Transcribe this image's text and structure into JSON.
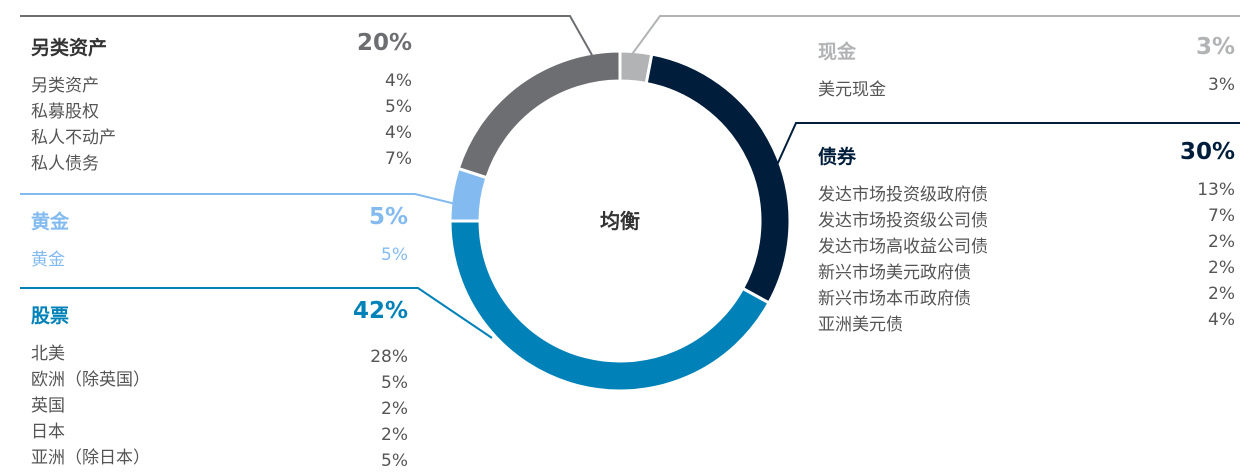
{
  "colors": {
    "alt": "#6d6e71",
    "gold": "#83bbf0",
    "equity": "#0082b9",
    "bond": "#001e3c",
    "cash": "#b2b3b5",
    "text": "#444444"
  },
  "chart_data": {
    "type": "pie",
    "center_label": "均衡",
    "slices": [
      {
        "name": "现金",
        "value": 3,
        "color": "#b2b3b5"
      },
      {
        "name": "债券",
        "value": 30,
        "color": "#001e3c"
      },
      {
        "name": "股票",
        "value": 42,
        "color": "#0082b9"
      },
      {
        "name": "黄金",
        "value": 5,
        "color": "#83bbf0"
      },
      {
        "name": "另类资产",
        "value": 20,
        "color": "#6d6e71"
      }
    ],
    "groups": [
      {
        "id": "alt",
        "name": "另类资产",
        "pct": "20%",
        "items": [
          {
            "label": "另类资产",
            "value": "4%"
          },
          {
            "label": "私募股权",
            "value": "5%"
          },
          {
            "label": "私人不动产",
            "value": "4%"
          },
          {
            "label": "私人债务",
            "value": "7%"
          }
        ]
      },
      {
        "id": "gold",
        "name": "黄金",
        "pct": "5%",
        "items": [
          {
            "label": "黄金",
            "value": "5%"
          }
        ]
      },
      {
        "id": "equity",
        "name": "股票",
        "pct": "42%",
        "items": [
          {
            "label": "北美",
            "value": "28%"
          },
          {
            "label": "欧洲（除英国）",
            "value": "5%"
          },
          {
            "label": "英国",
            "value": "2%"
          },
          {
            "label": "日本",
            "value": "2%"
          },
          {
            "label": "亚洲（除日本）",
            "value": "5%"
          }
        ]
      },
      {
        "id": "cash",
        "name": "现金",
        "pct": "3%",
        "items": [
          {
            "label": "美元现金",
            "value": "3%"
          }
        ]
      },
      {
        "id": "bond",
        "name": "债券",
        "pct": "30%",
        "items": [
          {
            "label": "发达市场投资级政府债",
            "value": "13%"
          },
          {
            "label": "发达市场投资级公司债",
            "value": "7%"
          },
          {
            "label": "发达市场高收益公司债",
            "value": "2%"
          },
          {
            "label": "新兴市场美元政府债",
            "value": "2%"
          },
          {
            "label": "新兴市场本币政府债",
            "value": "2%"
          },
          {
            "label": "亚洲美元债",
            "value": "4%"
          }
        ]
      }
    ]
  }
}
